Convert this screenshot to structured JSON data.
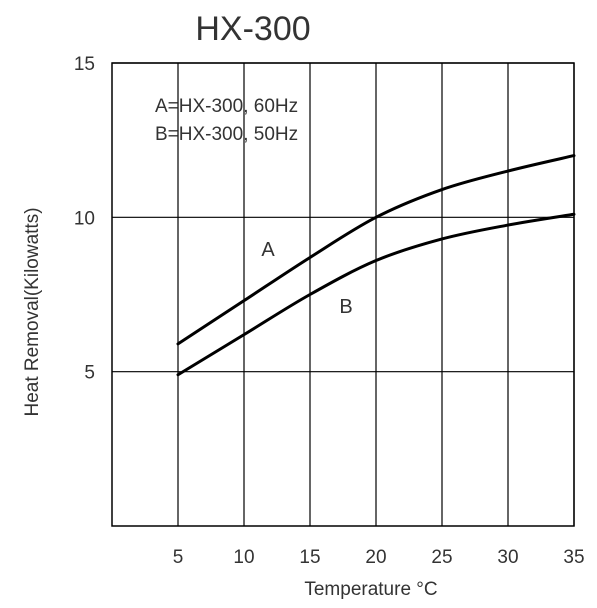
{
  "chart_data": {
    "type": "line",
    "title": "HX-300",
    "xlabel": "Temperature °C",
    "ylabel": "Heat Removal(Kilowatts)",
    "xlim": [
      0,
      35
    ],
    "ylim": [
      0,
      15
    ],
    "x_ticks": [
      "5",
      "10",
      "15",
      "20",
      "25",
      "30",
      "35"
    ],
    "y_ticks": [
      "5",
      "10",
      "15"
    ],
    "grid": true,
    "legend": [
      "A=HX-300, 60Hz",
      "B=HX-300, 50Hz"
    ],
    "series": [
      {
        "name": "A",
        "x": [
          5,
          10,
          15,
          20,
          25,
          30,
          35
        ],
        "y": [
          5.9,
          7.3,
          8.7,
          10.0,
          10.9,
          11.5,
          12.0
        ]
      },
      {
        "name": "B",
        "x": [
          5,
          10,
          15,
          20,
          25,
          30,
          35
        ],
        "y": [
          4.9,
          6.2,
          7.5,
          8.6,
          9.3,
          9.75,
          10.1
        ]
      }
    ],
    "colors": {
      "line": "#000000",
      "grid": "#000000",
      "text": "#333333"
    }
  }
}
